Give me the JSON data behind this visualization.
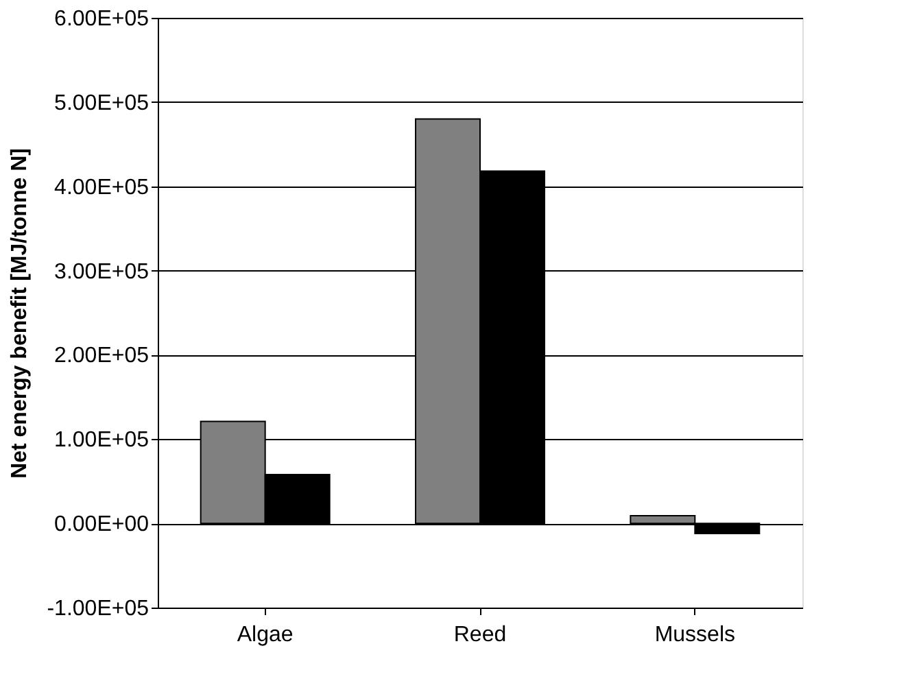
{
  "chart_data": {
    "type": "bar",
    "ylabel": "Net energy benefit [MJ/tonne N]",
    "categories": [
      "Algae",
      "Reed",
      "Mussels"
    ],
    "series": [
      {
        "color": "#808080",
        "values": [
          121000,
          480000,
          9000
        ]
      },
      {
        "color": "#000000",
        "values": [
          58000,
          418000,
          -12000
        ]
      }
    ],
    "ylim": [
      -100000,
      600000
    ],
    "yticks": [
      {
        "value": -100000,
        "label": "-1.00E+05"
      },
      {
        "value": 0,
        "label": "0.00E+00"
      },
      {
        "value": 100000,
        "label": "1.00E+05"
      },
      {
        "value": 200000,
        "label": "2.00E+05"
      },
      {
        "value": 300000,
        "label": "3.00E+05"
      },
      {
        "value": 400000,
        "label": "4.00E+05"
      },
      {
        "value": 500000,
        "label": "5.00E+05"
      },
      {
        "value": 600000,
        "label": "6.00E+05"
      }
    ],
    "grid": "y"
  }
}
